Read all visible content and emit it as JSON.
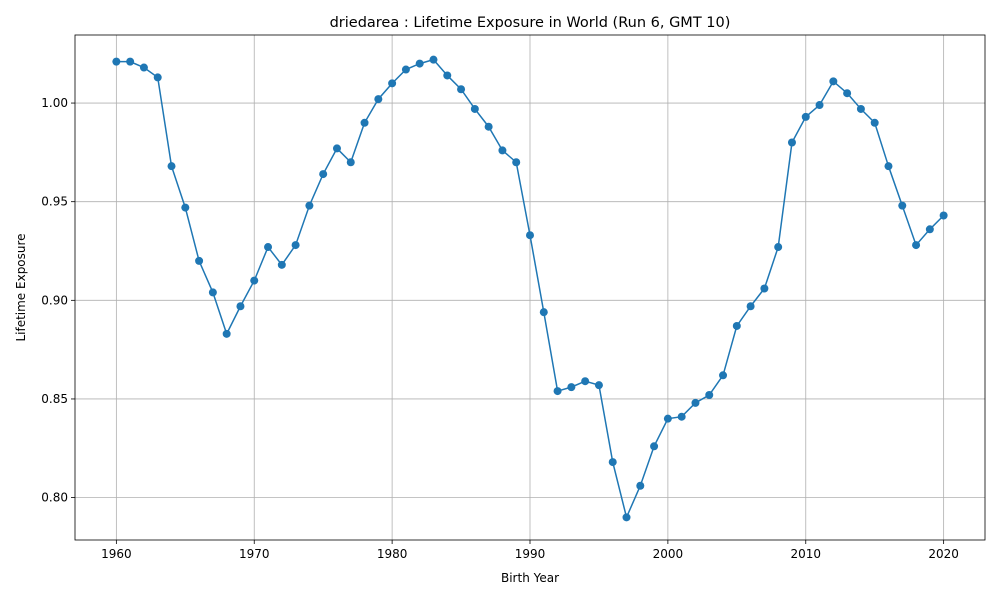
{
  "chart_data": {
    "type": "line",
    "title": "driedarea : Lifetime Exposure in World (Run 6, GMT 10)",
    "xlabel": "Birth Year",
    "ylabel": "Lifetime Exposure",
    "xlim": [
      1957,
      2023
    ],
    "ylim": [
      0.7785,
      1.0345
    ],
    "xticks": [
      1960,
      1970,
      1980,
      1990,
      2000,
      2010,
      2020
    ],
    "xtick_labels": [
      "1960",
      "1970",
      "1980",
      "1990",
      "2000",
      "2010",
      "2020"
    ],
    "yticks": [
      0.8,
      0.85,
      0.9,
      0.95,
      1.0
    ],
    "ytick_labels": [
      "0.80",
      "0.85",
      "0.90",
      "0.95",
      "1.00"
    ],
    "grid": true,
    "colors": {
      "series": "#1f77b4",
      "grid": "#b0b0b0"
    },
    "series": [
      {
        "x": [
          1960,
          1961,
          1962,
          1963,
          1964,
          1965,
          1966,
          1967,
          1968,
          1969,
          1970,
          1971,
          1972,
          1973,
          1974,
          1975,
          1976,
          1977,
          1978,
          1979,
          1980,
          1981,
          1982,
          1983,
          1984,
          1985,
          1986,
          1987,
          1988,
          1989,
          1990,
          1991,
          1992,
          1993,
          1994,
          1995,
          1996,
          1997,
          1998,
          1999,
          2000,
          2001,
          2002,
          2003,
          2004,
          2005,
          2006,
          2007,
          2008,
          2009,
          2010,
          2011,
          2012,
          2013,
          2014,
          2015,
          2016,
          2017,
          2018,
          2019,
          2020
        ],
        "values": [
          1.021,
          1.021,
          1.018,
          1.013,
          0.968,
          0.947,
          0.92,
          0.904,
          0.883,
          0.897,
          0.91,
          0.927,
          0.918,
          0.928,
          0.948,
          0.964,
          0.977,
          0.97,
          0.99,
          1.002,
          1.01,
          1.017,
          1.02,
          1.022,
          1.014,
          1.007,
          0.997,
          0.988,
          0.976,
          0.97,
          0.933,
          0.894,
          0.854,
          0.856,
          0.859,
          0.857,
          0.818,
          0.79,
          0.806,
          0.826,
          0.84,
          0.841,
          0.848,
          0.852,
          0.862,
          0.887,
          0.897,
          0.906,
          0.927,
          0.98,
          0.993,
          0.999,
          1.011,
          1.005,
          0.997,
          0.99,
          0.968,
          0.948,
          0.928,
          0.936,
          0.943
        ]
      }
    ]
  }
}
